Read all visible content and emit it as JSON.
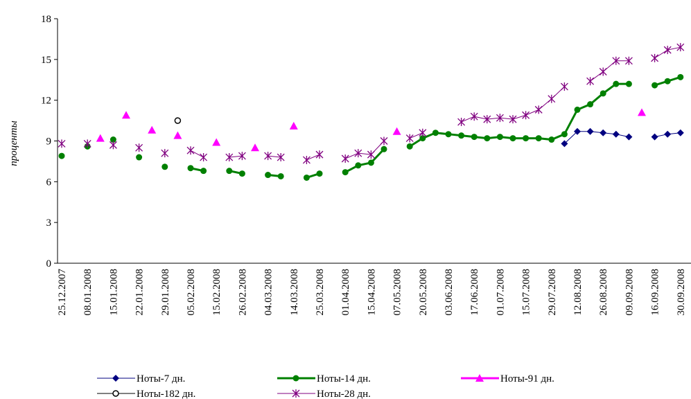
{
  "chart_data": {
    "type": "line",
    "y_label": "проценты",
    "categories": [
      "25.12.2007",
      null,
      "08.01.2008",
      null,
      "15.01.2008",
      null,
      "22.01.2008",
      null,
      "29.01.2008",
      null,
      "05.02.2008",
      null,
      "15.02.2008",
      null,
      "26.02.2008",
      null,
      "04.03.2008",
      null,
      "14.03.2008",
      null,
      "25.03.2008",
      null,
      "01.04.2008",
      null,
      "15.04.2008",
      null,
      "07.05.2008",
      null,
      "20.05.2008",
      null,
      "03.06.2008",
      null,
      "17.06.2008",
      null,
      "01.07.2008",
      null,
      "15.07.2008",
      null,
      "29.07.2008",
      null,
      "12.08.2008",
      null,
      "26.08.2008",
      null,
      "09.09.2008",
      null,
      "16.09.2008",
      null,
      "30.09.2008"
    ],
    "ylim": [
      0,
      18
    ],
    "yticks": [
      0,
      3,
      6,
      9,
      12,
      15,
      18
    ],
    "series": [
      {
        "name": "Ноты-7 дн.",
        "color": "#000080",
        "marker": "diamond",
        "line_width": 1,
        "values": [
          null,
          null,
          null,
          null,
          null,
          null,
          null,
          null,
          null,
          null,
          null,
          null,
          null,
          null,
          null,
          null,
          null,
          null,
          null,
          null,
          null,
          null,
          null,
          null,
          null,
          null,
          null,
          null,
          null,
          null,
          null,
          null,
          null,
          null,
          null,
          null,
          null,
          null,
          null,
          8.8,
          9.7,
          9.7,
          9.6,
          9.5,
          9.3,
          null,
          9.3,
          9.5,
          9.6
        ]
      },
      {
        "name": "Ноты-14 дн.",
        "color": "#008000",
        "marker": "circle",
        "line_width": 3,
        "values": [
          7.9,
          null,
          8.6,
          null,
          9.1,
          null,
          7.8,
          null,
          7.1,
          null,
          7.0,
          6.8,
          null,
          6.8,
          6.6,
          null,
          6.5,
          6.4,
          null,
          6.3,
          6.6,
          null,
          6.7,
          7.2,
          7.4,
          8.4,
          null,
          8.6,
          9.2,
          9.6,
          9.5,
          9.4,
          9.3,
          9.2,
          9.3,
          9.2,
          9.2,
          9.2,
          9.1,
          9.5,
          11.3,
          11.7,
          12.5,
          13.2,
          13.2,
          null,
          13.1,
          13.4,
          13.7
        ]
      },
      {
        "name": "Ноты-91 дн.",
        "color": "#ff00ff",
        "marker": "triangle",
        "line_width": 3,
        "values": [
          null,
          null,
          null,
          9.2,
          null,
          10.9,
          null,
          9.8,
          null,
          9.4,
          null,
          null,
          8.9,
          null,
          null,
          8.5,
          null,
          null,
          10.1,
          null,
          null,
          null,
          null,
          null,
          null,
          null,
          9.7,
          null,
          null,
          null,
          null,
          null,
          null,
          null,
          null,
          null,
          null,
          null,
          null,
          null,
          null,
          null,
          null,
          null,
          null,
          11.1,
          null,
          null,
          null
        ]
      },
      {
        "name": "Ноты-182 дн.",
        "color": "#000000",
        "marker": "open-circle",
        "line_width": 1,
        "values": [
          null,
          null,
          null,
          null,
          null,
          null,
          null,
          null,
          null,
          10.5,
          null,
          null,
          null,
          null,
          null,
          null,
          null,
          null,
          null,
          null,
          null,
          null,
          null,
          null,
          null,
          null,
          null,
          null,
          null,
          null,
          null,
          null,
          null,
          null,
          null,
          null,
          null,
          null,
          null,
          null,
          null,
          null,
          null,
          null,
          null,
          null,
          null,
          null,
          null
        ]
      },
      {
        "name": "Ноты-28 дн.",
        "color": "#800080",
        "marker": "asterisk",
        "line_width": 1,
        "values": [
          8.8,
          null,
          8.8,
          null,
          8.7,
          null,
          8.5,
          null,
          8.1,
          null,
          8.3,
          7.8,
          null,
          7.8,
          7.9,
          null,
          7.9,
          7.8,
          null,
          7.6,
          8.0,
          null,
          7.7,
          8.1,
          8.0,
          9.0,
          null,
          9.2,
          9.6,
          null,
          null,
          10.4,
          10.8,
          10.6,
          10.7,
          10.6,
          10.9,
          11.3,
          12.1,
          13.0,
          null,
          13.4,
          14.1,
          14.9,
          14.9,
          null,
          15.1,
          15.7,
          15.9
        ]
      }
    ]
  }
}
